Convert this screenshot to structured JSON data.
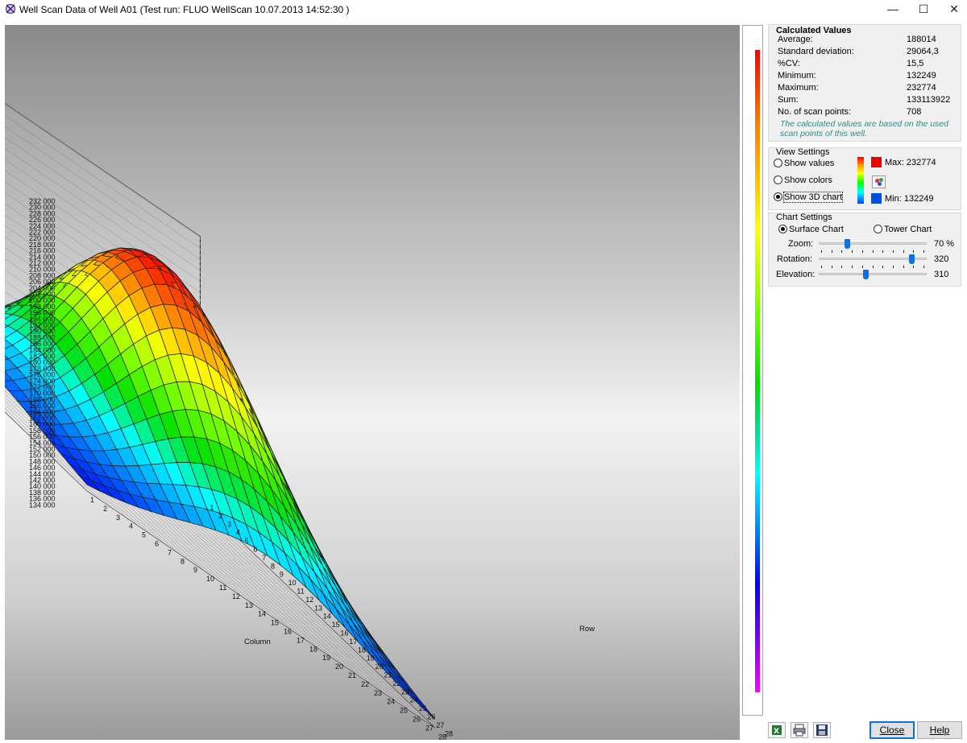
{
  "window": {
    "title": "Well Scan Data of Well A01 (Test run: FLUO WellScan 10.07.2013 14:52:30 )",
    "minimize_glyph": "—",
    "maximize_glyph": "☐",
    "close_glyph": "✕"
  },
  "calculated": {
    "title": "Calculated Values",
    "rows": [
      {
        "label": "Average:",
        "value": "188014"
      },
      {
        "label": "Standard deviation:",
        "value": "29064,3"
      },
      {
        "label": "%CV:",
        "value": "15,5"
      },
      {
        "label": "Minimum:",
        "value": "132249"
      },
      {
        "label": "Maximum:",
        "value": "232774"
      },
      {
        "label": "Sum:",
        "value": "133113922"
      },
      {
        "label": "No. of scan points:",
        "value": "708"
      }
    ],
    "note": "The calculated values are based on the used scan points of this well."
  },
  "view_settings": {
    "title": "View Settings",
    "options": [
      "Show values",
      "Show colors",
      "Show 3D chart"
    ],
    "selected": "Show 3D chart",
    "max_label": "Max: 232774",
    "min_label": "Min: 132249",
    "max_color": "#ee0000",
    "min_color": "#0050e6",
    "palette_icon": "color-palette-icon"
  },
  "chart_settings": {
    "title": "Chart Settings",
    "types": [
      "Surface Chart",
      "Tower Chart"
    ],
    "selected": "Surface Chart",
    "sliders": [
      {
        "label": "Zoom:",
        "value": "70 %",
        "level": 0.25
      },
      {
        "label": "Rotation:",
        "value": "320",
        "level": 0.89
      },
      {
        "label": "Elevation:",
        "value": "310",
        "level": 0.44
      }
    ]
  },
  "chart_data": {
    "type": "surface",
    "title": "",
    "xlabel": "Column",
    "ylabel": "Row",
    "zlabel": "",
    "columns": [
      1,
      2,
      3,
      4,
      5,
      6,
      7,
      8,
      9,
      10,
      11,
      12,
      13,
      14,
      15,
      16,
      17,
      18,
      19,
      20,
      21,
      22,
      23,
      24,
      25,
      26,
      27,
      28
    ],
    "rows": [
      1,
      2,
      3,
      4,
      5,
      6,
      7,
      8,
      9,
      10,
      11,
      12,
      13,
      14,
      15,
      16,
      17,
      18,
      19,
      20,
      21,
      22,
      23,
      24,
      25,
      26,
      27,
      28
    ],
    "z_ticks": [
      "232 000",
      "230 000",
      "228 000",
      "226 000",
      "224 000",
      "222 000",
      "220 000",
      "218 000",
      "216 000",
      "214 000",
      "212 000",
      "210 000",
      "208 000",
      "206 000",
      "204 000",
      "202 000",
      "200 000",
      "198 000",
      "196 000",
      "194 000",
      "192 000",
      "190 000",
      "188 000",
      "186 000",
      "184 000",
      "182 000",
      "180 000",
      "178 000",
      "176 000",
      "174 000",
      "172 000",
      "170 000",
      "168 000",
      "166 000",
      "164 000",
      "162 000",
      "160 000",
      "158 000",
      "156 000",
      "154 000",
      "152 000",
      "150 000",
      "148 000",
      "146 000",
      "144 000",
      "142 000",
      "140 000",
      "138 000",
      "136 000",
      "134 000"
    ],
    "zlim": [
      132249,
      232774
    ],
    "peak_value": 232774,
    "min_value": 132249,
    "color_scale": [
      "#0000ff",
      "#0080ff",
      "#00ffff",
      "#00e000",
      "#80ff00",
      "#ffff00",
      "#ff8000",
      "#ff0000"
    ]
  },
  "toolbar": {
    "excel_icon": "excel-export-icon",
    "print_icon": "print-icon",
    "save_icon": "save-icon",
    "close_label": "Close",
    "help_label": "Help"
  }
}
